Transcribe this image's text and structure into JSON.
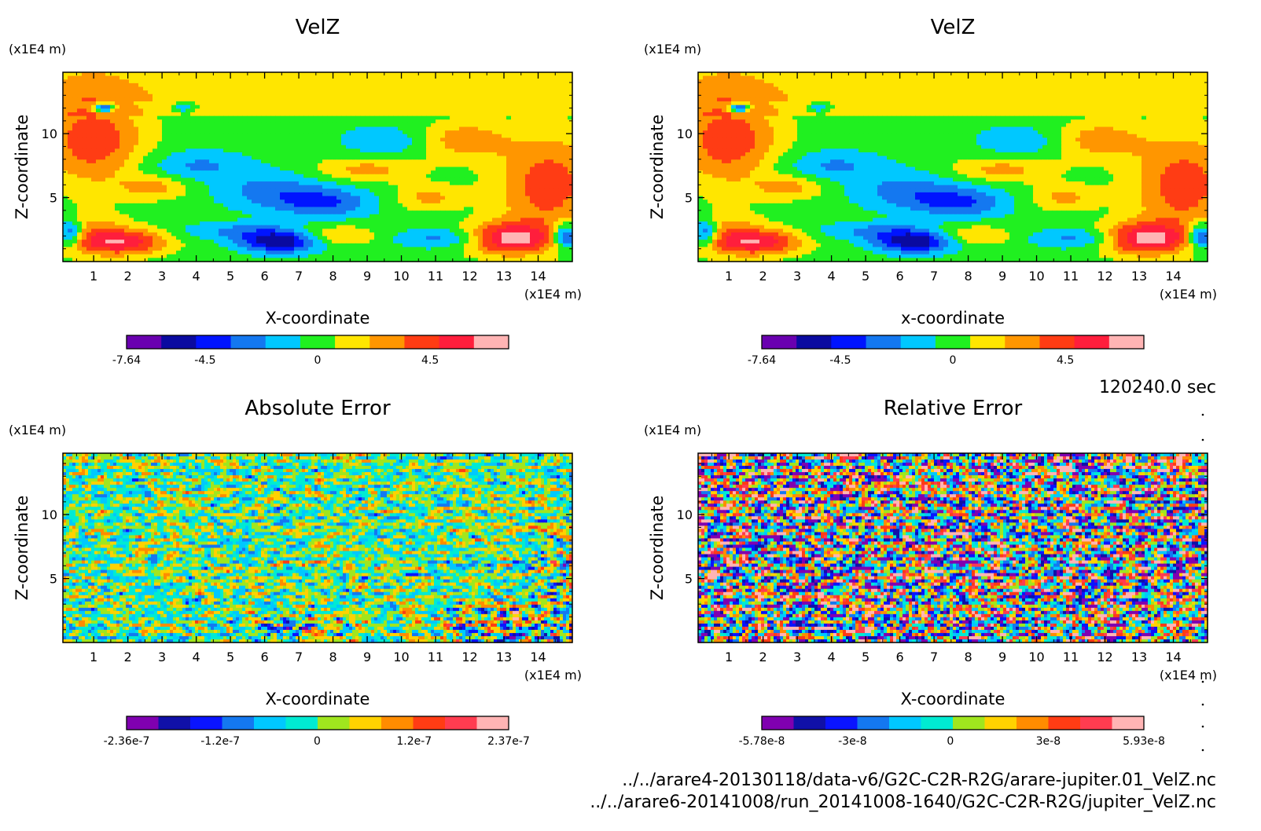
{
  "figure": {
    "time_label": "120240.0 sec",
    "footer_files": [
      "../../arare4-20130118/data-v6/G2C-C2R-R2G/arare-jupiter.01_VelZ.nc",
      "../../arare6-20141008/run_20141008-1640/G2C-C2R-R2G/jupiter_VelZ.nc"
    ]
  },
  "chart_data": [
    {
      "type": "heatmap",
      "field": "smooth",
      "title": "VelZ",
      "xlabel": "X-coordinate",
      "ylabel": "Z-coordinate",
      "x_unit": "(x1E4 m)",
      "y_unit": "(x1E4 m)",
      "x_ticks": [
        "1",
        "2",
        "3",
        "4",
        "5",
        "6",
        "7",
        "8",
        "9",
        "10",
        "11",
        "12",
        "13",
        "14"
      ],
      "y_ticks": [
        "5",
        "10"
      ],
      "xlim": [
        0.1,
        15.0
      ],
      "ylim": [
        0.0,
        14.8
      ],
      "colorbar": {
        "range": [
          -7.64,
          7.64
        ],
        "labels": [
          "-7.64",
          "-4.5",
          "0",
          "4.5"
        ],
        "label_values": [
          -7.64,
          -4.5,
          0,
          4.5
        ],
        "colors": [
          "#6a00b0",
          "#0a0aa0",
          "#0014ff",
          "#1478f0",
          "#00c8ff",
          "#20f020",
          "#ffe600",
          "#ff9600",
          "#ff3c14",
          "#ff1e3c",
          "#ffb4b4"
        ]
      }
    },
    {
      "type": "heatmap",
      "field": "smooth",
      "title": "VelZ",
      "xlabel": "x-coordinate",
      "ylabel": "Z-coordinate",
      "x_unit": "(x1E4 m)",
      "y_unit": "(x1E4 m)",
      "x_ticks": [
        "1",
        "2",
        "3",
        "4",
        "5",
        "6",
        "7",
        "8",
        "9",
        "10",
        "11",
        "12",
        "13",
        "14"
      ],
      "y_ticks": [
        "5",
        "10"
      ],
      "xlim": [
        0.1,
        15.0
      ],
      "ylim": [
        0.0,
        14.8
      ],
      "colorbar": {
        "range": [
          -7.64,
          7.64
        ],
        "labels": [
          "-7.64",
          "-4.5",
          "0",
          "4.5"
        ],
        "label_values": [
          -7.64,
          -4.5,
          0,
          4.5
        ],
        "colors": [
          "#6a00b0",
          "#0a0aa0",
          "#0014ff",
          "#1478f0",
          "#00c8ff",
          "#20f020",
          "#ffe600",
          "#ff9600",
          "#ff3c14",
          "#ff1e3c",
          "#ffb4b4"
        ]
      }
    },
    {
      "type": "heatmap",
      "field": "noise-low",
      "title": "Absolute Error",
      "xlabel": "X-coordinate",
      "ylabel": "Z-coordinate",
      "x_unit": "(x1E4 m)",
      "y_unit": "(x1E4 m)",
      "x_ticks": [
        "1",
        "2",
        "3",
        "4",
        "5",
        "6",
        "7",
        "8",
        "9",
        "10",
        "11",
        "12",
        "13",
        "14"
      ],
      "y_ticks": [
        "5",
        "10"
      ],
      "xlim": [
        0.1,
        15.0
      ],
      "ylim": [
        0.0,
        14.8
      ],
      "colorbar": {
        "range": [
          -2.36e-07,
          2.37e-07
        ],
        "labels": [
          "-2.36e-7",
          "-1.2e-7",
          "0",
          "1.2e-7",
          "2.37e-7"
        ],
        "label_values": [
          -2.36e-07,
          -1.2e-07,
          0,
          1.2e-07,
          2.37e-07
        ],
        "colors": [
          "#8000b0",
          "#1010a8",
          "#0a14ff",
          "#1478f0",
          "#00c8ff",
          "#00ebd2",
          "#a0e61e",
          "#ffd200",
          "#ff8c00",
          "#ff3c14",
          "#ff3c50",
          "#ffb4b4"
        ]
      }
    },
    {
      "type": "heatmap",
      "field": "noise-high",
      "title": "Relative Error",
      "xlabel": "X-coordinate",
      "ylabel": "Z-coordinate",
      "x_unit": "(x1E4 m)",
      "y_unit": "(x1E4 m)",
      "x_ticks": [
        "1",
        "2",
        "3",
        "4",
        "5",
        "6",
        "7",
        "8",
        "9",
        "10",
        "11",
        "12",
        "13",
        "14"
      ],
      "y_ticks": [
        "5",
        "10"
      ],
      "xlim": [
        0.1,
        15.0
      ],
      "ylim": [
        0.0,
        14.8
      ],
      "colorbar": {
        "range": [
          -5.78e-08,
          5.93e-08
        ],
        "labels": [
          "-5.78e-8",
          "-3e-8",
          "0",
          "3e-8",
          "5.93e-8"
        ],
        "label_values": [
          -5.78e-08,
          -3e-08,
          0,
          3e-08,
          5.93e-08
        ],
        "colors": [
          "#8000b0",
          "#1010a8",
          "#0a14ff",
          "#1478f0",
          "#00c8ff",
          "#00ebd2",
          "#a0e61e",
          "#ffd200",
          "#ff8c00",
          "#ff3c14",
          "#ff3c50",
          "#ffb4b4"
        ]
      }
    }
  ]
}
